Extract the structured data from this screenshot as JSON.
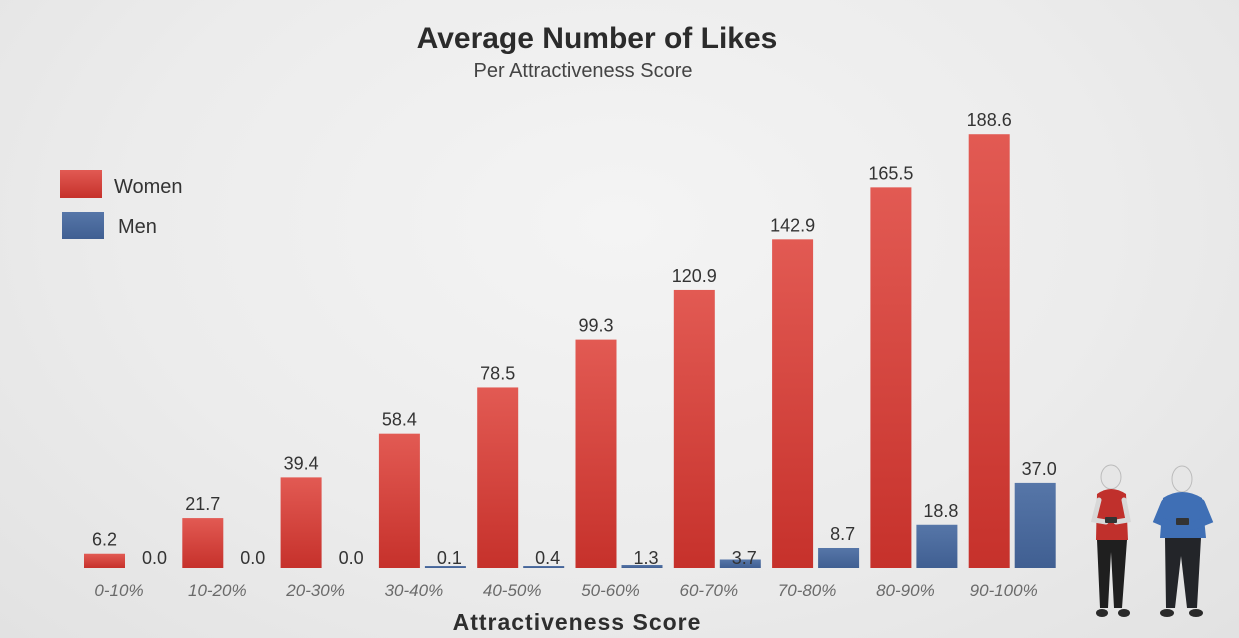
{
  "chart_data": {
    "type": "bar",
    "title": "Average Number of Likes",
    "subtitle": "Per Attractiveness Score",
    "xlabel": "Attractiveness Score",
    "ylabel": "",
    "categories": [
      "0-10%",
      "10-20%",
      "20-30%",
      "30-40%",
      "40-50%",
      "50-60%",
      "60-70%",
      "70-80%",
      "80-90%",
      "90-100%"
    ],
    "series": [
      {
        "name": "Women",
        "color": "#d93a33",
        "values": [
          6.2,
          21.7,
          39.4,
          58.4,
          78.5,
          99.3,
          120.9,
          142.9,
          165.5,
          188.6
        ]
      },
      {
        "name": "Men",
        "color": "#4a6a9e",
        "values": [
          0.0,
          0.0,
          0.0,
          0.1,
          0.4,
          1.3,
          3.7,
          8.7,
          18.8,
          37.0
        ]
      }
    ],
    "value_labels": [
      [
        "6.2",
        "21.7",
        "39.4",
        "58.4",
        "78.5",
        "99.3",
        "120.9",
        "142.9",
        "165.5",
        "188.6"
      ],
      [
        "0.0",
        "0.0",
        "0.0",
        "0.1",
        "0.4",
        "1.3",
        "3.7",
        "8.7",
        "18.8",
        "37.0"
      ]
    ],
    "ylim": [
      0,
      190
    ],
    "grid": false,
    "legend": "top-left",
    "axes_visible": false
  },
  "illustration": {
    "woman_figure_icon": "woman-figure-icon",
    "man_figure_icon": "man-figure-icon",
    "woman_shirt_color": "#c0302c",
    "man_shirt_color": "#3f6fb5"
  }
}
